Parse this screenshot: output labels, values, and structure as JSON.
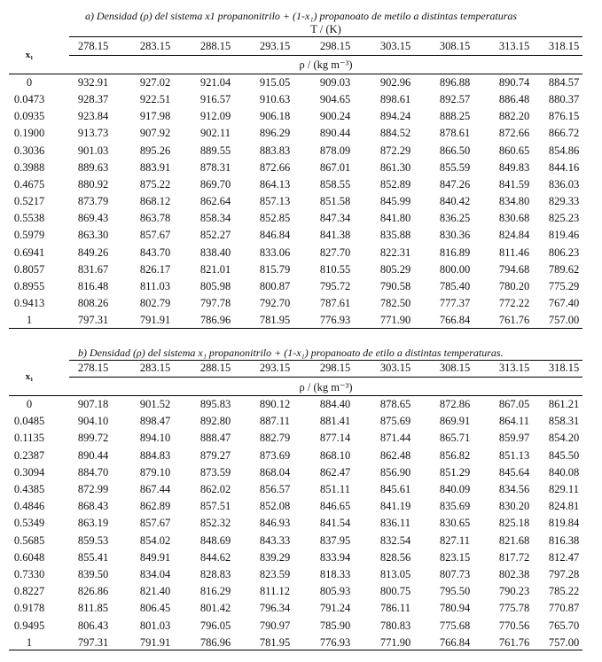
{
  "tables": [
    {
      "title": "a) Densidad (ρ) del sistema x1 propanonitrilo + (1-x₁) propanoato de metilo a distintas temperaturas",
      "temp_header": "T / (K)",
      "x_label": "x₁",
      "unit_label": "ρ / (kg m⁻³)",
      "temperatures": [
        "278.15",
        "283.15",
        "288.15",
        "293.15",
        "298.15",
        "303.15",
        "308.15",
        "313.15",
        "318.15"
      ],
      "rows": [
        {
          "x1": "0",
          "values": [
            "932.91",
            "927.02",
            "921.04",
            "915.05",
            "909.03",
            "902.96",
            "896.88",
            "890.74",
            "884.57"
          ]
        },
        {
          "x1": "0.0473",
          "values": [
            "928.37",
            "922.51",
            "916.57",
            "910.63",
            "904.65",
            "898.61",
            "892.57",
            "886.48",
            "880.37"
          ]
        },
        {
          "x1": "0.0935",
          "values": [
            "923.84",
            "917.98",
            "912.09",
            "906.18",
            "900.24",
            "894.24",
            "888.25",
            "882.20",
            "876.15"
          ]
        },
        {
          "x1": "0.1900",
          "values": [
            "913.73",
            "907.92",
            "902.11",
            "896.29",
            "890.44",
            "884.52",
            "878.61",
            "872.66",
            "866.72"
          ]
        },
        {
          "x1": "0.3036",
          "values": [
            "901.03",
            "895.26",
            "889.55",
            "883.83",
            "878.09",
            "872.29",
            "866.50",
            "860.65",
            "854.86"
          ]
        },
        {
          "x1": "0.3988",
          "values": [
            "889.63",
            "883.91",
            "878.31",
            "872.66",
            "867.01",
            "861.30",
            "855.59",
            "849.83",
            "844.16"
          ]
        },
        {
          "x1": "0.4675",
          "values": [
            "880.92",
            "875.22",
            "869.70",
            "864.13",
            "858.55",
            "852.89",
            "847.26",
            "841.59",
            "836.03"
          ]
        },
        {
          "x1": "0.5217",
          "values": [
            "873.79",
            "868.12",
            "862.64",
            "857.13",
            "851.58",
            "845.99",
            "840.42",
            "834.80",
            "829.33"
          ]
        },
        {
          "x1": "0.5538",
          "values": [
            "869.43",
            "863.78",
            "858.34",
            "852.85",
            "847.34",
            "841.80",
            "836.25",
            "830.68",
            "825.23"
          ]
        },
        {
          "x1": "0.5979",
          "values": [
            "863.30",
            "857.67",
            "852.27",
            "846.84",
            "841.38",
            "835.88",
            "830.36",
            "824.84",
            "819.46"
          ]
        },
        {
          "x1": "0.6941",
          "values": [
            "849.26",
            "843.70",
            "838.40",
            "833.06",
            "827.70",
            "822.31",
            "816.89",
            "811.46",
            "806.23"
          ]
        },
        {
          "x1": "0.8057",
          "values": [
            "831.67",
            "826.17",
            "821.01",
            "815.79",
            "810.55",
            "805.29",
            "800.00",
            "794.68",
            "789.62"
          ]
        },
        {
          "x1": "0.8955",
          "values": [
            "816.48",
            "811.03",
            "805.98",
            "800.87",
            "795.72",
            "790.58",
            "785.40",
            "780.20",
            "775.29"
          ]
        },
        {
          "x1": "0.9413",
          "values": [
            "808.26",
            "802.79",
            "797.78",
            "792.70",
            "787.61",
            "782.50",
            "777.37",
            "772.22",
            "767.40"
          ]
        },
        {
          "x1": "1",
          "values": [
            "797.31",
            "791.91",
            "786.96",
            "781.95",
            "776.93",
            "771.90",
            "766.84",
            "761.76",
            "757.00"
          ]
        }
      ]
    },
    {
      "title": "b) Densidad (ρ) del sistema x₁ propanonitrilo + (1-x₁) propanoato de etilo a distintas temperaturas.",
      "x_label": "x₁",
      "unit_label": "ρ / (kg m⁻³)",
      "temperatures": [
        "278.15",
        "283.15",
        "288.15",
        "293.15",
        "298.15",
        "303.15",
        "308.15",
        "313.15",
        "318.15"
      ],
      "rows": [
        {
          "x1": "0",
          "values": [
            "907.18",
            "901.52",
            "895.83",
            "890.12",
            "884.40",
            "878.65",
            "872.86",
            "867.05",
            "861.21"
          ]
        },
        {
          "x1": "0.0485",
          "values": [
            "904.10",
            "898.47",
            "892.80",
            "887.11",
            "881.41",
            "875.69",
            "869.91",
            "864.11",
            "858.31"
          ]
        },
        {
          "x1": "0.1135",
          "values": [
            "899.72",
            "894.10",
            "888.47",
            "882.79",
            "877.14",
            "871.44",
            "865.71",
            "859.97",
            "854.20"
          ]
        },
        {
          "x1": "0.2387",
          "values": [
            "890.44",
            "884.83",
            "879.27",
            "873.69",
            "868.10",
            "862.48",
            "856.82",
            "851.13",
            "845.50"
          ]
        },
        {
          "x1": "0.3094",
          "values": [
            "884.70",
            "879.10",
            "873.59",
            "868.04",
            "862.47",
            "856.90",
            "851.29",
            "845.64",
            "840.08"
          ]
        },
        {
          "x1": "0.4385",
          "values": [
            "872.99",
            "867.44",
            "862.02",
            "856.57",
            "851.11",
            "845.61",
            "840.09",
            "834.56",
            "829.11"
          ]
        },
        {
          "x1": "0.4846",
          "values": [
            "868.43",
            "862.89",
            "857.51",
            "852.08",
            "846.65",
            "841.19",
            "835.69",
            "830.20",
            "824.81"
          ]
        },
        {
          "x1": "0.5349",
          "values": [
            "863.19",
            "857.67",
            "852.32",
            "846.93",
            "841.54",
            "836.11",
            "830.65",
            "825.18",
            "819.84"
          ]
        },
        {
          "x1": "0.5685",
          "values": [
            "859.53",
            "854.02",
            "848.69",
            "843.33",
            "837.95",
            "832.54",
            "827.11",
            "821.68",
            "816.38"
          ]
        },
        {
          "x1": "0.6048",
          "values": [
            "855.41",
            "849.91",
            "844.62",
            "839.29",
            "833.94",
            "828.56",
            "823.15",
            "817.72",
            "812.47"
          ]
        },
        {
          "x1": "0.7330",
          "values": [
            "839.50",
            "834.04",
            "828.83",
            "823.59",
            "818.33",
            "813.05",
            "807.73",
            "802.38",
            "797.28"
          ]
        },
        {
          "x1": "0.8227",
          "values": [
            "826.86",
            "821.40",
            "816.29",
            "811.12",
            "805.93",
            "800.75",
            "795.50",
            "790.23",
            "785.22"
          ]
        },
        {
          "x1": "0.9178",
          "values": [
            "811.85",
            "806.45",
            "801.42",
            "796.34",
            "791.24",
            "786.11",
            "780.94",
            "775.78",
            "770.87"
          ]
        },
        {
          "x1": "0.9495",
          "values": [
            "806.43",
            "801.03",
            "796.05",
            "790.97",
            "785.90",
            "780.83",
            "775.68",
            "770.56",
            "765.70"
          ]
        },
        {
          "x1": "1",
          "values": [
            "797.31",
            "791.91",
            "786.96",
            "781.95",
            "776.93",
            "771.90",
            "766.84",
            "761.76",
            "757.00"
          ]
        }
      ]
    }
  ]
}
